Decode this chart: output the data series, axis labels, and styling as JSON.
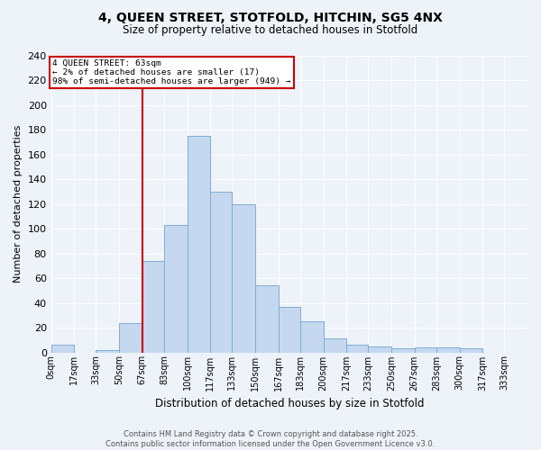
{
  "title1": "4, QUEEN STREET, STOTFOLD, HITCHIN, SG5 4NX",
  "title2": "Size of property relative to detached houses in Stotfold",
  "xlabel": "Distribution of detached houses by size in Stotfold",
  "ylabel": "Number of detached properties",
  "bar_values": [
    6,
    0,
    2,
    24,
    74,
    103,
    175,
    130,
    120,
    54,
    37,
    25,
    11,
    6,
    5,
    3,
    4,
    4,
    3,
    0,
    0
  ],
  "bin_edges": [
    0,
    17,
    33,
    50,
    67,
    83,
    100,
    117,
    133,
    150,
    167,
    183,
    200,
    217,
    233,
    250,
    267,
    283,
    300,
    317,
    333,
    350
  ],
  "xlabels": [
    "0sqm",
    "17sqm",
    "33sqm",
    "50sqm",
    "67sqm",
    "83sqm",
    "100sqm",
    "117sqm",
    "133sqm",
    "150sqm",
    "167sqm",
    "183sqm",
    "200sqm",
    "217sqm",
    "233sqm",
    "250sqm",
    "267sqm",
    "283sqm",
    "300sqm",
    "317sqm",
    "333sqm"
  ],
  "bar_color": "#c5d8f0",
  "bar_edgecolor": "#7bafd4",
  "vline_x": 67,
  "vline_color": "#cc0000",
  "annotation_title": "4 QUEEN STREET: 63sqm",
  "annotation_line1": "← 2% of detached houses are smaller (17)",
  "annotation_line2": "98% of semi-detached houses are larger (949) →",
  "annotation_box_facecolor": "white",
  "annotation_box_edgecolor": "#cc0000",
  "ylim": [
    0,
    240
  ],
  "yticks": [
    0,
    20,
    40,
    60,
    80,
    100,
    120,
    140,
    160,
    180,
    200,
    220,
    240
  ],
  "footer1": "Contains HM Land Registry data © Crown copyright and database right 2025.",
  "footer2": "Contains public sector information licensed under the Open Government Licence v3.0.",
  "bg_color": "#eef2f9"
}
